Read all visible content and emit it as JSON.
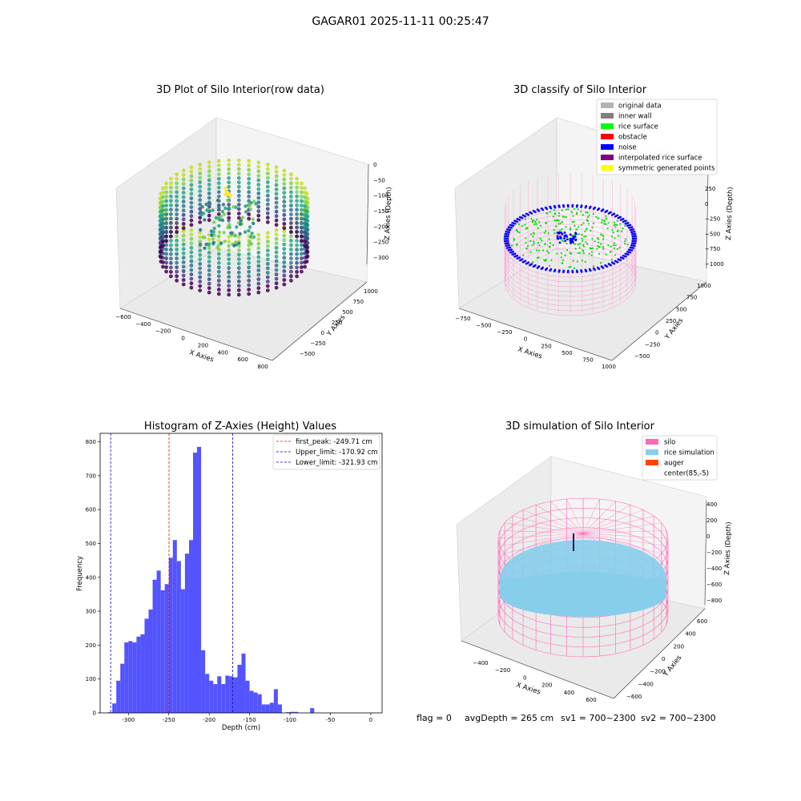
{
  "figure_title": "GAGAR01 2025-11-11 00:25:47",
  "status_text": {
    "flag": "flag = 0",
    "avg_depth": "avgDepth = 265 cm",
    "sv1": "sv1 = 700~2300",
    "sv2": "sv2 = 700~2300"
  },
  "colors": {
    "silo": "#ff69b4",
    "rice_simulation": "#87ceeb",
    "auger": "#ff4500",
    "hist_bar": "#4b4bff",
    "first_peak": "#ff0000",
    "limits": "#0000cc",
    "original_data": "#b3b3b3",
    "inner_wall": "#808080",
    "rice_surface": "#00ff00",
    "obstacle": "#ff0000",
    "noise": "#0000ff",
    "interpolated": "#800080",
    "symmetric": "#ffff00"
  },
  "chart_data": [
    {
      "type": "scatter",
      "subtype": "scatter3d",
      "title": "3D Plot of Silo Interior(row data)",
      "xlabel": "X Axies",
      "ylabel": "Y Axies",
      "zlabel": "Z Axies (Depth)",
      "x_ticks": [
        "−600",
        "−400",
        "−200",
        "0",
        "200",
        "400",
        "600",
        "800"
      ],
      "y_ticks": [
        "−500",
        "−250",
        "0",
        "250",
        "500",
        "750",
        "1000"
      ],
      "z_ticks": [
        "0",
        "−50",
        "−100",
        "−150",
        "−200",
        "−250",
        "−300"
      ],
      "colormap": "viridis"
    },
    {
      "type": "scatter",
      "subtype": "scatter3d",
      "title": "3D classify of Silo Interior",
      "xlabel": "X Axies",
      "ylabel": "Y Axies",
      "zlabel": "Z Axies (Depth)",
      "x_ticks": [
        "−750",
        "−500",
        "−250",
        "0",
        "250",
        "500",
        "750",
        "1000"
      ],
      "y_ticks": [
        "−500",
        "−250",
        "0",
        "250",
        "500",
        "750",
        "1000"
      ],
      "z_ticks": [
        "250",
        "0",
        "−250",
        "−500",
        "−750",
        "−1000"
      ],
      "legend": [
        {
          "label": "original data",
          "color": "#b3b3b3"
        },
        {
          "label": "inner wall",
          "color": "#808080"
        },
        {
          "label": "rice surface",
          "color": "#00ff00"
        },
        {
          "label": "obstacle",
          "color": "#ff0000"
        },
        {
          "label": "noise",
          "color": "#0000ff"
        },
        {
          "label": "interpolated rice surface",
          "color": "#800080"
        },
        {
          "label": "symmetric generated points",
          "color": "#ffff00"
        }
      ],
      "legend_position": "top-right"
    },
    {
      "type": "bar",
      "subtype": "histogram",
      "title": "Histogram of Z-Axies (Height) Values",
      "xlabel": "Depth (cm)",
      "ylabel": "Frequency",
      "xlim": [
        -335,
        14
      ],
      "ylim": [
        0,
        825
      ],
      "x_ticks": [
        -300,
        -250,
        -200,
        -150,
        -100,
        -50,
        0
      ],
      "y_ticks": [
        0,
        100,
        200,
        300,
        400,
        500,
        600,
        700,
        800
      ],
      "bin_start": -325,
      "bin_width": 5,
      "values": [
        2,
        28,
        95,
        145,
        208,
        212,
        208,
        225,
        232,
        278,
        305,
        393,
        420,
        362,
        380,
        458,
        510,
        448,
        365,
        470,
        510,
        768,
        785,
        185,
        115,
        95,
        85,
        108,
        85,
        110,
        108,
        105,
        142,
        175,
        95,
        65,
        60,
        55,
        25,
        25,
        30,
        70,
        25,
        0,
        2,
        3,
        3,
        0,
        0,
        0,
        14
      ],
      "vlines": [
        {
          "label": "first_peak: -249.71 cm",
          "x": -249.71,
          "color": "#ff0000"
        },
        {
          "label": "Upper_limit: -170.92 cm",
          "x": -170.92,
          "color": "#0000cc"
        },
        {
          "label": "Lower_limit: -321.93 cm",
          "x": -321.93,
          "color": "#0000cc"
        }
      ],
      "legend_position": "top-right"
    },
    {
      "type": "scatter",
      "subtype": "scatter3d",
      "title": "3D simulation of Silo Interior",
      "xlabel": "X Axies",
      "ylabel": "Y Axies",
      "zlabel": "Z Axies (Depth)",
      "x_ticks": [
        "−400",
        "−200",
        "0",
        "200",
        "400",
        "600"
      ],
      "y_ticks": [
        "−600",
        "−400",
        "−200",
        "0",
        "200",
        "400",
        "600"
      ],
      "z_ticks": [
        "400",
        "200",
        "0",
        "−200",
        "−400",
        "−600",
        "−800"
      ],
      "legend": [
        {
          "label": "silo",
          "color": "#ff69b4"
        },
        {
          "label": "rice simulation",
          "color": "#87ceeb"
        },
        {
          "label": "auger",
          "color": "#ff4500"
        },
        {
          "label": "center(85,-5)",
          "color": ""
        }
      ],
      "legend_position": "top-right"
    }
  ]
}
